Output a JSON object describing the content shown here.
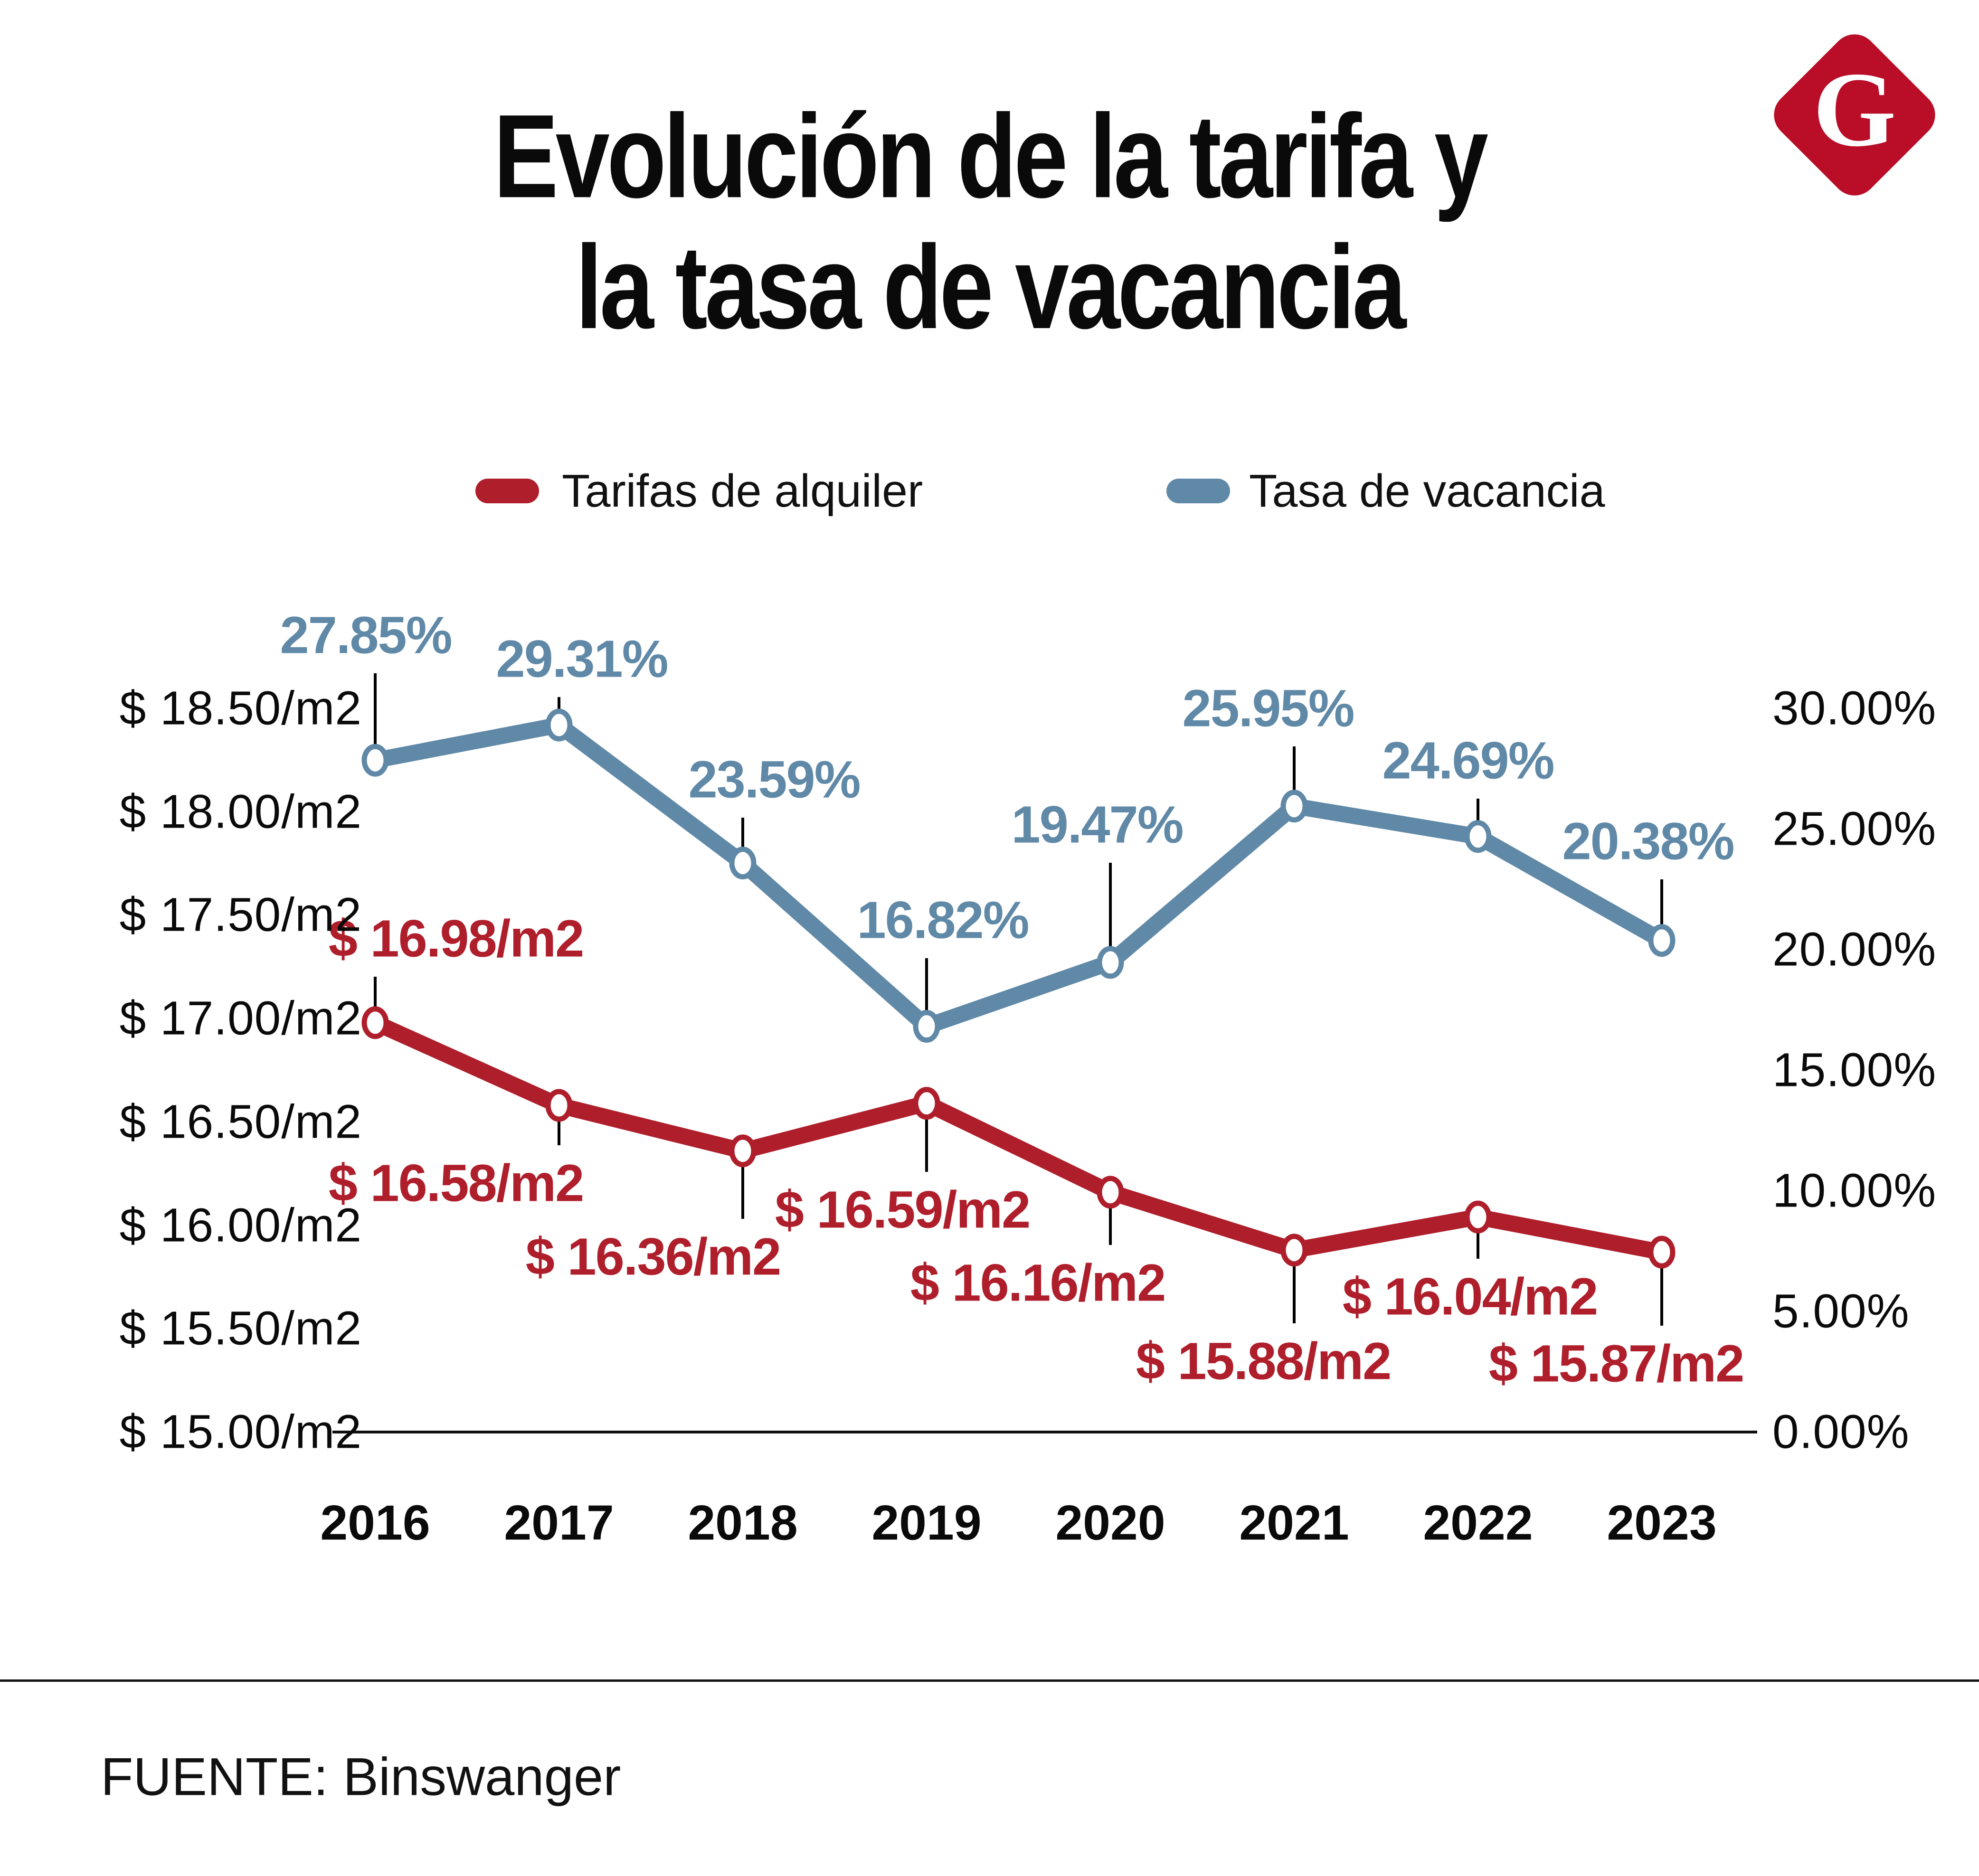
{
  "title": {
    "line1": "Evolución de la tarifa y",
    "line2": "la tasa de vacancia"
  },
  "logo": {
    "letter": "G",
    "color": "#B90D28"
  },
  "legend": {
    "items": [
      {
        "label": "Tarifas de alquiler",
        "color": "#AF1E2B"
      },
      {
        "label": "Tasa de vacancia",
        "color": "#6089A7"
      }
    ]
  },
  "source": {
    "text": "FUENTE: Binswanger"
  },
  "colors": {
    "tarifas": "#AF1E2B",
    "tasa": "#6089A7",
    "axis_line": "#0f0f0f",
    "leader_line": "#000000",
    "text": "#0a0a0a"
  },
  "chart_data": {
    "type": "line",
    "title": "Evolución de la tarifa y la tasa de vacancia",
    "categories": [
      "2016",
      "2017",
      "2018",
      "2019",
      "2020",
      "2021",
      "2022",
      "2023"
    ],
    "series": [
      {
        "name": "Tarifas de alquiler",
        "axis": "left",
        "unit": "$/m2",
        "color": "#AF1E2B",
        "values": [
          16.98,
          16.58,
          16.36,
          16.59,
          16.16,
          15.88,
          16.04,
          15.87
        ],
        "labels": [
          "$ 16.98/m2",
          "$ 16.58/m2",
          "$ 16.36/m2",
          "$ 16.59/m2",
          "$ 16.16/m2",
          "$ 15.88/m2",
          "$ 16.04/m2",
          "$ 15.87/m2"
        ]
      },
      {
        "name": "Tasa de vacancia",
        "axis": "right",
        "unit": "%",
        "color": "#6089A7",
        "values": [
          27.85,
          29.31,
          23.59,
          16.82,
          19.47,
          25.95,
          24.69,
          20.38
        ],
        "labels": [
          "27.85%",
          "29.31%",
          "23.59%",
          "16.82%",
          "19.47%",
          "25.95%",
          "24.69%",
          "20.38%"
        ]
      }
    ],
    "left_axis": {
      "min": 15,
      "max": 18.5,
      "ticks": [
        "$ 18.50/m2",
        "$ 18.00/m2",
        "$ 17.50/m2",
        "$ 17.00/m2",
        "$ 16.50/m2",
        "$ 16.00/m2",
        "$ 15.50/m2",
        "$ 15.00/m2"
      ],
      "tick_values": [
        18.5,
        18.0,
        17.5,
        17.0,
        16.5,
        16.0,
        15.5,
        15.0
      ]
    },
    "right_axis": {
      "min": 0,
      "max": 30,
      "ticks": [
        "30.00%",
        "25.00%",
        "20.00%",
        "15.00%",
        "10.00%",
        "5.00%",
        "0.00%"
      ],
      "tick_values": [
        30,
        25,
        20,
        15,
        10,
        5,
        0
      ]
    },
    "grid": false,
    "legend_position": "top"
  }
}
